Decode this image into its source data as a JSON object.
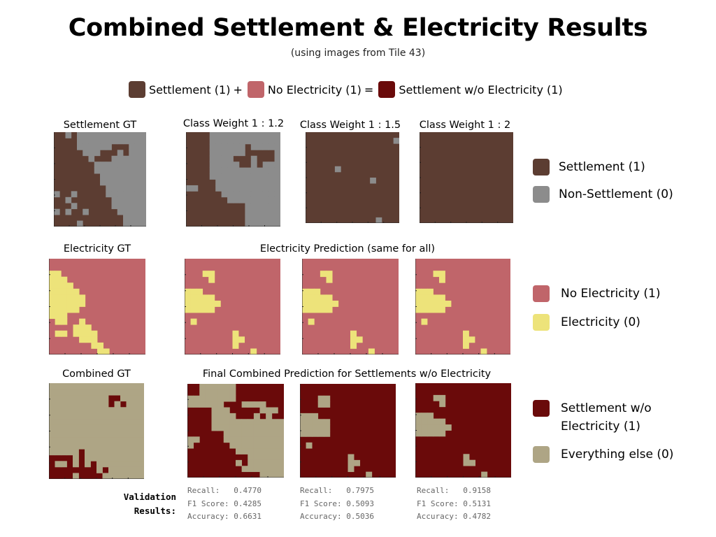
{
  "title": "Combined Settlement & Electricity Results",
  "subtitle": "(using images from Tile 43)",
  "colors": {
    "settlement": "#5c3d32",
    "non_settlement": "#8c8c8c",
    "no_electricity": "#c0656a",
    "electricity": "#ede37a",
    "settlement_wo_electricity": "#6a0a0a",
    "everything_else": "#aea585"
  },
  "formula": {
    "a": "Settlement (1)",
    "plus": "+",
    "b": "No Electricity (1)",
    "eq": "=",
    "c": "Settlement w/o Electricity (1)"
  },
  "row1": {
    "gt_label": "Settlement GT",
    "labels": [
      "Class Weight 1 : 1.2",
      "Class Weight 1 : 1.5",
      "Class Weight 1 : 2"
    ]
  },
  "row2": {
    "gt_label": "Electricity GT",
    "pred_label": "Electricity Prediction (same for all)"
  },
  "row3": {
    "gt_label": "Combined GT",
    "pred_label": "Final Combined Prediction for Settlements w/o Electricity"
  },
  "legend": {
    "settlement": "Settlement (1)",
    "non_settlement": "Non-Settlement (0)",
    "no_electricity": "No Electricity (1)",
    "electricity": "Electricity (0)",
    "settlement_wo_electricity_1": "Settlement w/o",
    "settlement_wo_electricity_2": "Electricity (1)",
    "everything_else": "Everything else (0)"
  },
  "validation": {
    "label_1": "Validation",
    "label_2": "Results:",
    "results": [
      {
        "recall": "Recall:   0.4770",
        "f1": "F1 Score: 0.4285",
        "accuracy": "Accuracy: 0.6631"
      },
      {
        "recall": "Recall:   0.7975",
        "f1": "F1 Score: 0.5093",
        "accuracy": "Accuracy: 0.5036"
      },
      {
        "recall": "Recall:   0.9158",
        "f1": "F1 Score: 0.5131",
        "accuracy": "Accuracy: 0.4782"
      }
    ]
  },
  "maps": {
    "settlement_gt": [
      "1101000000000000",
      "1111000000000000",
      "1111000000111000",
      "1111100011101000",
      "1111110111000000",
      "1111111000000000",
      "1111111000000000",
      "1111111100000000",
      "1111111100000000",
      "1111111110000000",
      "0110111110000000",
      "1101111111000000",
      "1110111111000000",
      "0101101111100000",
      "1111111111110000",
      "1111011111110000"
    ],
    "settlement_cw12": [
      "1111000000000000",
      "1111000000000000",
      "1111000000100000",
      "1111000000111110",
      "1111000011101110",
      "1111000001101000",
      "1111000000000000",
      "1111000000000000",
      "1111100000000000",
      "0011100000000000",
      "1111110000000000",
      "1111111000000000",
      "1111111111000000",
      "1111111111000000",
      "1111111111000000",
      "1111111111000000"
    ],
    "settlement_cw15": [
      "1111111111111111",
      "1111111111111110",
      "1111111111111111",
      "1111111111111111",
      "1111111111111111",
      "1111111111111111",
      "1111101111111111",
      "1111111111111111",
      "1111111111101111",
      "1111111111111111",
      "1111111111111111",
      "1111111111111111",
      "1111111111111111",
      "1111111111111111",
      "1111111111111111",
      "1111111111110111"
    ],
    "settlement_cw2": [
      "1111111111111111",
      "1111111111111111",
      "1111111111111111",
      "1111111111111111",
      "1111111111111111",
      "1111111111111111",
      "1111111111111111",
      "1111111111111111",
      "1111111111111111",
      "1111111111111111",
      "1111111111111111",
      "1111111111111111",
      "1111111111111111",
      "1111111111111111",
      "1111111111111111",
      "1111111111111111"
    ],
    "electricity_gt": [
      "1111111111111111",
      "1111111111111111",
      "0011111111111111",
      "0001111111111111",
      "0000111111111111",
      "0000011111111111",
      "0000001111111111",
      "0000001111111111",
      "0000011111111111",
      "0001111111111111",
      "1001101111111111",
      "1111000111111111",
      "1001000011111111",
      "1111100011111111",
      "1111111001111111",
      "1111111100111111"
    ],
    "electricity_pred": [
      "1111111111111111",
      "1111111111111111",
      "1110011111111111",
      "1111011111111111",
      "1111111111111111",
      "0001111111111111",
      "0000011111111111",
      "0000001111111111",
      "0000011111111111",
      "1111111111111111",
      "1011111111111111",
      "1111111111111111",
      "1111111101111111",
      "1111111100111111",
      "1111111101111111",
      "1111111111101111"
    ],
    "combined_gt": [
      "0000000000000000",
      "0000000000000000",
      "0000000000110000",
      "0000000000101000",
      "0000000000000000",
      "0000000000000000",
      "0000000000000000",
      "0000000000000000",
      "0000000000000000",
      "0000000000000000",
      "0000000000000000",
      "0000010000000000",
      "1111010000000000",
      "1001010100000000",
      "1111111101000000",
      "1111011110000000"
    ],
    "combined_cw12": [
      "1100000011111111",
      "1100000011111111",
      "0000000011111111",
      "0000001110000111",
      "1111000111110001",
      "1111000011101011",
      "1111000000000000",
      "1111000000000000",
      "1111110000000000",
      "0011110000000000",
      "0111111000000000",
      "1111111100000000",
      "1111111111000000",
      "1111111101000000",
      "1111111110000000",
      "1111111111110000"
    ],
    "combined_cw15": [
      "1111111111111111",
      "1111111111111111",
      "1110011111111111",
      "1110011111111111",
      "1111111111111111",
      "0001111111111111",
      "0000011111111111",
      "0000011111111111",
      "0000011111111111",
      "1111111111111111",
      "1011111111111111",
      "1111111111111111",
      "1111111101111111",
      "1111111100111111",
      "1111111101111111",
      "1111111111101111"
    ],
    "combined_cw2": [
      "1111111111111111",
      "1111111111111111",
      "1110011111111111",
      "1111011111111111",
      "1111111111111111",
      "0001111111111111",
      "0000011111111111",
      "0000001111111111",
      "0000011111111111",
      "1111111111111111",
      "1111111111111111",
      "1111111111111111",
      "1111111101111111",
      "1111111100111111",
      "1111111111111111",
      "1111111111101111"
    ]
  }
}
